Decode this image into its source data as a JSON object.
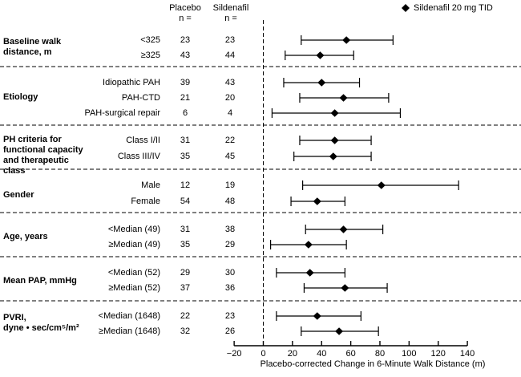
{
  "figure": {
    "legend_label": "Sildenafil 20 mg TID",
    "columns": {
      "placebo_header": "Placebo",
      "sildenafil_header": "Sildenafil",
      "n_label": "n ="
    },
    "axis_title": "Placebo-corrected Change in 6-Minute Walk Distance (m)"
  },
  "colors": {
    "ink": "#000000",
    "background": "#ffffff"
  },
  "chart_data": {
    "type": "scatter",
    "variant": "forest-plot",
    "marker": "filled-diamond",
    "legend": [
      {
        "name": "Sildenafil 20 mg TID",
        "marker": "filled-diamond"
      }
    ],
    "columns": [
      "Placebo n =",
      "Sildenafil n ="
    ],
    "x_axis": {
      "label": "Placebo-corrected Change in 6-Minute Walk Distance (m)",
      "min": -20,
      "max": 140,
      "ticks": [
        -20,
        0,
        20,
        40,
        60,
        80,
        100,
        120,
        140
      ],
      "tick_labels": [
        "−20",
        "0",
        "20",
        "40",
        "60",
        "80",
        "100",
        "120",
        "140"
      ],
      "reference_line_x": 0
    },
    "groups": [
      {
        "label_lines": [
          "Baseline walk",
          "distance, m"
        ],
        "rows": [
          {
            "label": "<325",
            "placebo_n": 23,
            "sildenafil_n": 23,
            "estimate": 57,
            "ci_low": 26,
            "ci_high": 89
          },
          {
            "label": "≥325",
            "placebo_n": 43,
            "sildenafil_n": 44,
            "estimate": 39,
            "ci_low": 15,
            "ci_high": 62
          }
        ]
      },
      {
        "label_lines": [
          "Etiology"
        ],
        "rows": [
          {
            "label": "Idiopathic PAH",
            "placebo_n": 39,
            "sildenafil_n": 43,
            "estimate": 40,
            "ci_low": 14,
            "ci_high": 66
          },
          {
            "label": "PAH-CTD",
            "placebo_n": 21,
            "sildenafil_n": 20,
            "estimate": 55,
            "ci_low": 25,
            "ci_high": 86
          },
          {
            "label": "PAH-surgical repair",
            "placebo_n": 6,
            "sildenafil_n": 4,
            "estimate": 49,
            "ci_low": 6,
            "ci_high": 94
          }
        ]
      },
      {
        "label_lines": [
          "PH criteria for",
          "functional capacity",
          "and therapeutic",
          "class"
        ],
        "rows": [
          {
            "label": "Class I/II",
            "placebo_n": 31,
            "sildenafil_n": 22,
            "estimate": 49,
            "ci_low": 25,
            "ci_high": 74
          },
          {
            "label": "Class III/IV",
            "placebo_n": 35,
            "sildenafil_n": 45,
            "estimate": 48,
            "ci_low": 21,
            "ci_high": 74
          }
        ]
      },
      {
        "label_lines": [
          "Gender"
        ],
        "rows": [
          {
            "label": "Male",
            "placebo_n": 12,
            "sildenafil_n": 19,
            "estimate": 81,
            "ci_low": 27,
            "ci_high": 134
          },
          {
            "label": "Female",
            "placebo_n": 54,
            "sildenafil_n": 48,
            "estimate": 37,
            "ci_low": 19,
            "ci_high": 56
          }
        ]
      },
      {
        "label_lines": [
          "Age, years"
        ],
        "rows": [
          {
            "label": "<Median (49)",
            "placebo_n": 31,
            "sildenafil_n": 38,
            "estimate": 55,
            "ci_low": 29,
            "ci_high": 82
          },
          {
            "label": "≥Median (49)",
            "placebo_n": 35,
            "sildenafil_n": 29,
            "estimate": 31,
            "ci_low": 5,
            "ci_high": 57
          }
        ]
      },
      {
        "label_lines": [
          "Mean PAP, mmHg"
        ],
        "rows": [
          {
            "label": "<Median (52)",
            "placebo_n": 29,
            "sildenafil_n": 30,
            "estimate": 32,
            "ci_low": 9,
            "ci_high": 56
          },
          {
            "label": "≥Median (52)",
            "placebo_n": 37,
            "sildenafil_n": 36,
            "estimate": 56,
            "ci_low": 28,
            "ci_high": 85
          }
        ]
      },
      {
        "label_lines": [
          "PVRI,",
          "dyne • sec/cm⁵/m²"
        ],
        "rows": [
          {
            "label": "<Median (1648)",
            "placebo_n": 22,
            "sildenafil_n": 23,
            "estimate": 37,
            "ci_low": 9,
            "ci_high": 67
          },
          {
            "label": "≥Median (1648)",
            "placebo_n": 32,
            "sildenafil_n": 26,
            "estimate": 52,
            "ci_low": 26,
            "ci_high": 79
          }
        ]
      }
    ]
  }
}
